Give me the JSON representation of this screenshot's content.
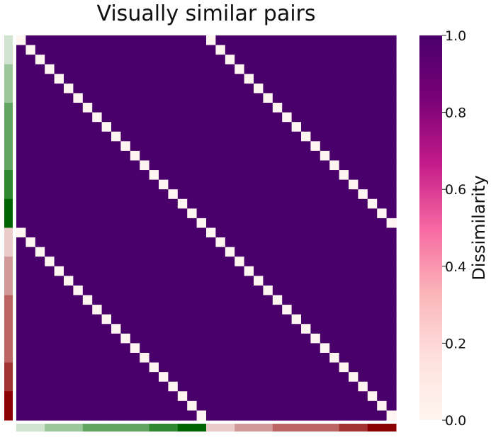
{
  "chart_data": {
    "type": "heatmap",
    "title": "Visually similar pairs",
    "size": 40,
    "pair_offset": 20,
    "value_on_diagonal": 0.0,
    "value_on_pair_diagonals": 0.0,
    "value_elsewhere": 1.0,
    "colorbar": {
      "label": "Dissimilarity",
      "range": [
        0.0,
        1.0
      ],
      "ticks": [
        "0.0",
        "0.2",
        "0.4",
        "0.6",
        "0.8",
        "1.0"
      ],
      "colormap": [
        "#fff5f0",
        "#fde0dd",
        "#fbb4b9",
        "#f768a1",
        "#c51b8a",
        "#7a0177",
        "#49006a"
      ]
    },
    "row_color_groups": [
      {
        "count": 3,
        "color": "#cfe3cf"
      },
      {
        "count": 4,
        "color": "#9cc69c"
      },
      {
        "count": 7,
        "color": "#62a562"
      },
      {
        "count": 3,
        "color": "#2f892f"
      },
      {
        "count": 3,
        "color": "#006400"
      },
      {
        "count": 3,
        "color": "#ebcaca"
      },
      {
        "count": 4,
        "color": "#d09a9a"
      },
      {
        "count": 7,
        "color": "#bd6464"
      },
      {
        "count": 3,
        "color": "#a33232"
      },
      {
        "count": 3,
        "color": "#8b0000"
      }
    ]
  }
}
